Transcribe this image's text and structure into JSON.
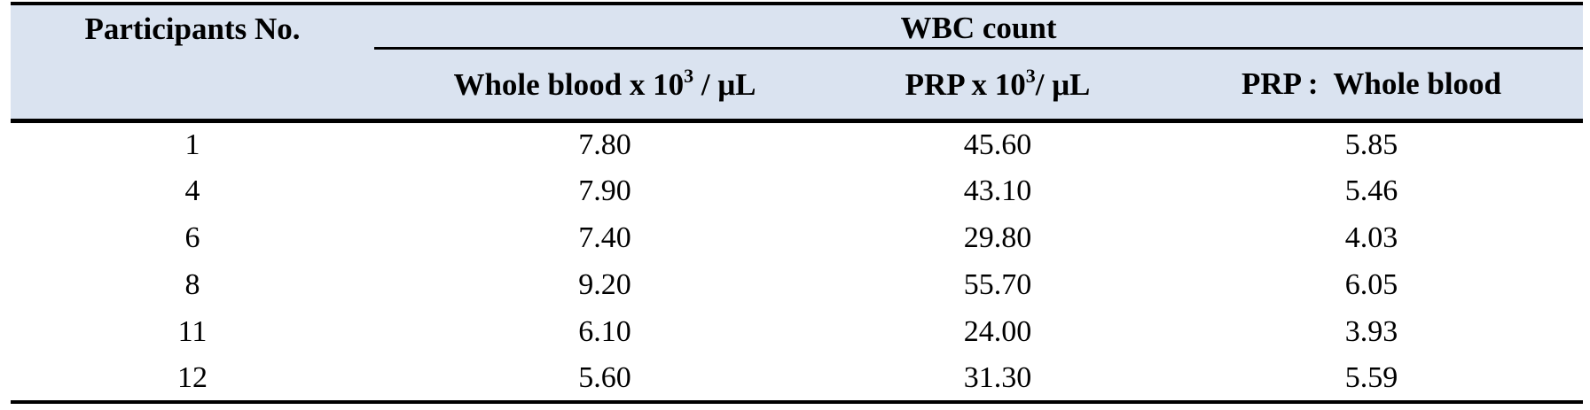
{
  "table": {
    "header": {
      "participants": "Participants No.",
      "group": "WBC count",
      "whole_blood": {
        "base": "Whole blood x 10",
        "sup": "3",
        "unit": " / μL"
      },
      "prp": {
        "base": "PRP x 10",
        "sup": "3",
        "unit": "/ μL"
      },
      "ratio": "PRP :  Whole blood"
    },
    "rows": [
      {
        "no": "1",
        "whole_blood": "7.80",
        "prp": "45.60",
        "ratio": "5.85"
      },
      {
        "no": "4",
        "whole_blood": "7.90",
        "prp": "43.10",
        "ratio": "5.46"
      },
      {
        "no": "6",
        "whole_blood": "7.40",
        "prp": "29.80",
        "ratio": "4.03"
      },
      {
        "no": "8",
        "whole_blood": "9.20",
        "prp": "55.70",
        "ratio": "6.05"
      },
      {
        "no": "11",
        "whole_blood": "6.10",
        "prp": "24.00",
        "ratio": "3.93"
      },
      {
        "no": "12",
        "whole_blood": "5.60",
        "prp": "31.30",
        "ratio": "5.59"
      }
    ],
    "colors": {
      "header_bg": "#dae3f0",
      "rule": "#000000",
      "text": "#000000"
    }
  }
}
